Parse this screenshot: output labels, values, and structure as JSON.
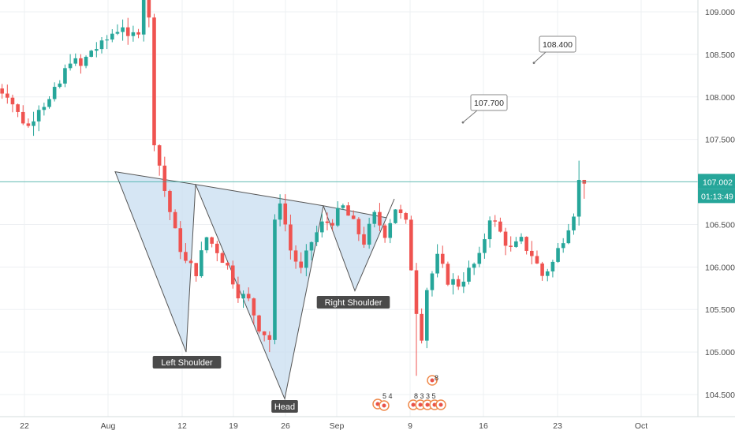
{
  "chart_data": {
    "type": "candlestick",
    "y_ticks": [
      "104.500",
      "105.000",
      "105.500",
      "106.000",
      "106.500",
      "107.500",
      "108.000",
      "108.500",
      "109.000"
    ],
    "x_ticks": [
      "22",
      "Aug",
      "12",
      "19",
      "26",
      "Sep",
      "9",
      "16",
      "23",
      "Oct"
    ],
    "ylim": [
      104.32,
      109.22
    ],
    "current_price": {
      "price": "107.002",
      "value": 107.002,
      "countdown": "01:13:49"
    },
    "pattern": {
      "name": "inverse head and shoulders",
      "labels": {
        "left_shoulder": "Left Shoulder",
        "head": "Head",
        "right_shoulder": "Right Shoulder"
      },
      "lows": {
        "left_shoulder": 105.0,
        "head": 104.45,
        "right_shoulder": 105.72
      }
    },
    "targets": [
      {
        "label": "107.700",
        "value": 107.7
      },
      {
        "label": "108.400",
        "value": 108.4
      }
    ],
    "events": [
      {
        "label": "5 4"
      },
      {
        "label": "8 3 3 5"
      },
      {
        "label": "8"
      }
    ],
    "colors": {
      "up": "#26a69a",
      "down": "#ef5350",
      "pattern_fill": "#c8ddf0",
      "pattern_stroke": "#555555",
      "price_line": "#26a69a",
      "grid": "#eef0f3"
    }
  }
}
